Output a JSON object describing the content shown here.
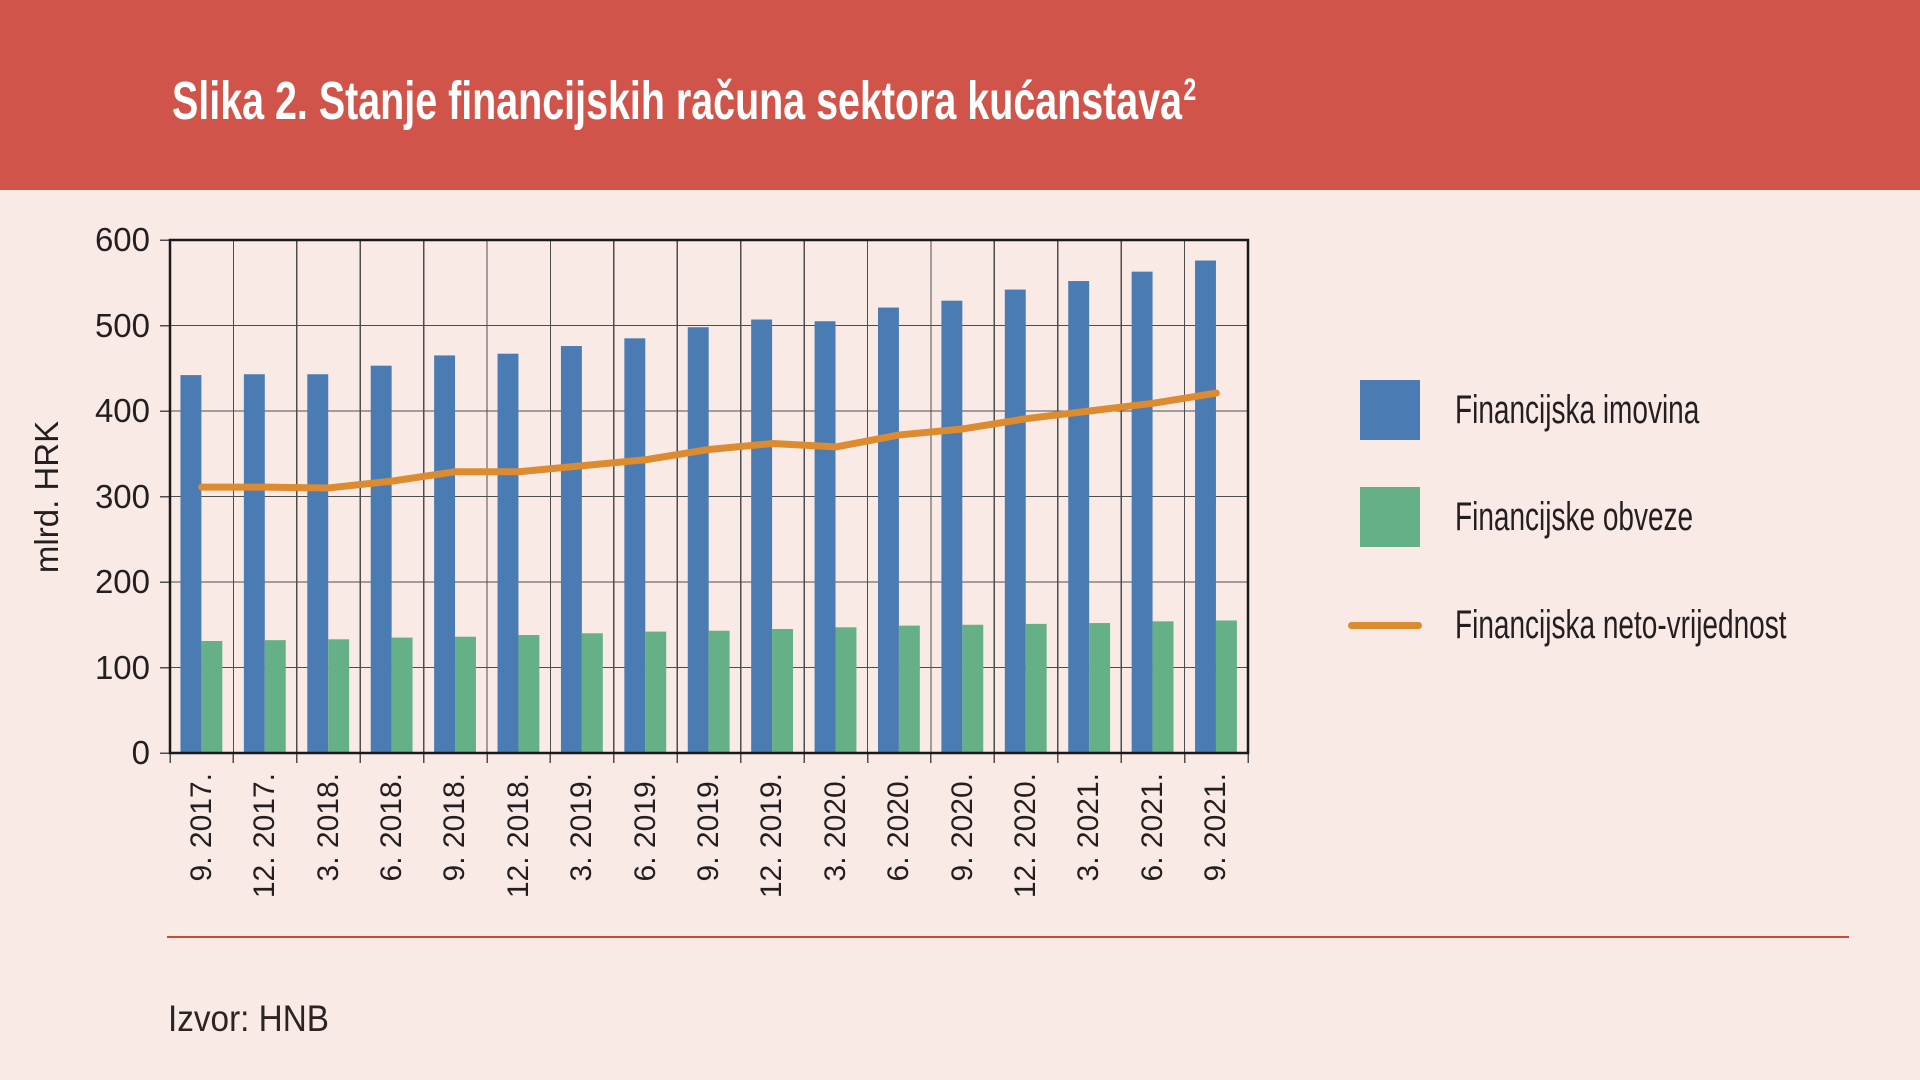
{
  "banner": {
    "title": "Slika 2. Stanje financijskih računa sektora kućanstava",
    "title_superscript": "2"
  },
  "footer": {
    "source_label": "Izvor: HNB"
  },
  "theme": {
    "page_bg": "#f9eae6",
    "banner_bg": "#d05449",
    "banner_text": "#ffffff",
    "grid_color": "#4d4d4d",
    "frame_color": "#1a1a1a",
    "tick_color": "#4d4d4d",
    "text_color": "#231f20",
    "divider_color": "#cc4a3e"
  },
  "chart_data": {
    "type": "bar",
    "title": "Slika 2. Stanje financijskih računa sektora kućanstava²",
    "xlabel": "",
    "ylabel": "mlrd. HRK",
    "ylim": [
      0,
      600
    ],
    "ytick_step": 100,
    "grid": true,
    "legend_position": "right",
    "categories": [
      "9. 2017.",
      "12. 2017.",
      "3. 2018.",
      "6. 2018.",
      "9. 2018.",
      "12. 2018.",
      "3. 2019.",
      "6. 2019.",
      "9. 2019.",
      "12. 2019.",
      "3. 2020.",
      "6. 2020.",
      "9. 2020.",
      "12. 2020.",
      "3. 2021.",
      "6. 2021.",
      "9. 2021."
    ],
    "series": [
      {
        "name": "Financijska imovina",
        "type": "bar",
        "color": "#4a7cb3",
        "values": [
          442,
          443,
          443,
          453,
          465,
          467,
          476,
          485,
          498,
          507,
          505,
          521,
          529,
          542,
          552,
          563,
          576
        ]
      },
      {
        "name": "Financijske obveze",
        "type": "bar",
        "color": "#65b086",
        "values": [
          131,
          132,
          133,
          135,
          136,
          138,
          140,
          142,
          143,
          145,
          147,
          149,
          150,
          151,
          152,
          154,
          155
        ]
      },
      {
        "name": "Financijska neto-vrijednost",
        "type": "line",
        "color": "#dc8b30",
        "values": [
          311,
          311,
          310,
          318,
          329,
          329,
          336,
          343,
          355,
          362,
          358,
          372,
          379,
          391,
          400,
          409,
          421
        ]
      }
    ]
  }
}
